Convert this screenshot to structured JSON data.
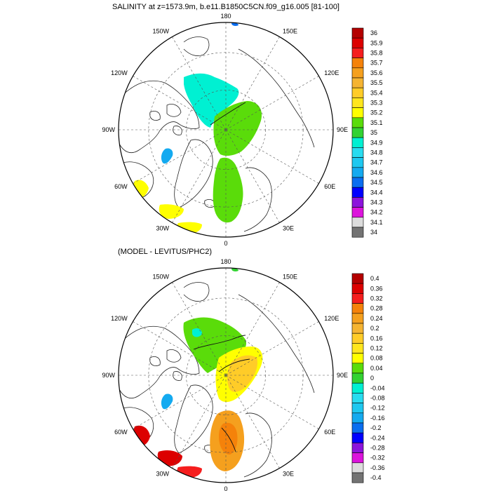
{
  "chart_data": [
    {
      "type": "heatmap",
      "projection": "north-polar-stereographic",
      "title": "SALINITY at z=1573.9m, b.e11.B1850C5CN.f09_g16.005 [81-100]",
      "variable": "salinity",
      "longitude_labels": [
        {
          "lon": 180,
          "label": "180"
        },
        {
          "lon": 150,
          "label": "150E"
        },
        {
          "lon": 120,
          "label": "120E"
        },
        {
          "lon": 90,
          "label": "90E"
        },
        {
          "lon": 60,
          "label": "60E"
        },
        {
          "lon": 30,
          "label": "30E"
        },
        {
          "lon": 0,
          "label": "0"
        },
        {
          "lon": -30,
          "label": "30W"
        },
        {
          "lon": -60,
          "label": "60W"
        },
        {
          "lon": -90,
          "label": "90W"
        },
        {
          "lon": -120,
          "label": "120W"
        },
        {
          "lon": -150,
          "label": "150W"
        }
      ],
      "colorbar": {
        "levels": [
          "36",
          "35.9",
          "35.8",
          "35.7",
          "35.6",
          "35.5",
          "35.4",
          "35.3",
          "35.2",
          "35.1",
          "35",
          "34.9",
          "34.8",
          "34.7",
          "34.6",
          "34.5",
          "34.4",
          "34.3",
          "34.2",
          "34.1",
          "34"
        ],
        "colors": [
          "#b40000",
          "#dc0000",
          "#f51e1e",
          "#f5820a",
          "#f5a01e",
          "#f5b432",
          "#ffcc28",
          "#ffe61e",
          "#ffff00",
          "#5adc0a",
          "#32d232",
          "#00f0d2",
          "#28dcf0",
          "#1ec8f0",
          "#14aaf0",
          "#0a6ef0",
          "#0000ff",
          "#8c14dc",
          "#dc14dc",
          "#dcdcdc",
          "#737373"
        ]
      }
    },
    {
      "type": "heatmap",
      "projection": "north-polar-stereographic",
      "title": "(MODEL - LEVITUS/PHC2)",
      "variable": "salinity difference",
      "longitude_labels": [
        {
          "lon": 180,
          "label": "180"
        },
        {
          "lon": 150,
          "label": "150E"
        },
        {
          "lon": 120,
          "label": "120E"
        },
        {
          "lon": 90,
          "label": "90E"
        },
        {
          "lon": 60,
          "label": "60E"
        },
        {
          "lon": 30,
          "label": "30E"
        },
        {
          "lon": 0,
          "label": "0"
        },
        {
          "lon": -30,
          "label": "30W"
        },
        {
          "lon": -60,
          "label": "60W"
        },
        {
          "lon": -90,
          "label": "90W"
        },
        {
          "lon": -120,
          "label": "120W"
        },
        {
          "lon": -150,
          "label": "150W"
        }
      ],
      "colorbar": {
        "levels": [
          "0.4",
          "0.36",
          "0.32",
          "0.28",
          "0.24",
          "0.2",
          "0.16",
          "0.12",
          "0.08",
          "0.04",
          "0",
          "-0.04",
          "-0.08",
          "-0.12",
          "-0.16",
          "-0.2",
          "-0.24",
          "-0.28",
          "-0.32",
          "-0.36",
          "-0.4"
        ],
        "colors": [
          "#b40000",
          "#dc0000",
          "#f51e1e",
          "#f5820a",
          "#f5a01e",
          "#f5b432",
          "#ffcc28",
          "#ffe61e",
          "#ffff00",
          "#5adc0a",
          "#32d232",
          "#00f0d2",
          "#28dcf0",
          "#1ec8f0",
          "#14aaf0",
          "#0a6ef0",
          "#0000ff",
          "#8c14dc",
          "#dc14dc",
          "#dcdcdc",
          "#737373"
        ]
      }
    }
  ]
}
